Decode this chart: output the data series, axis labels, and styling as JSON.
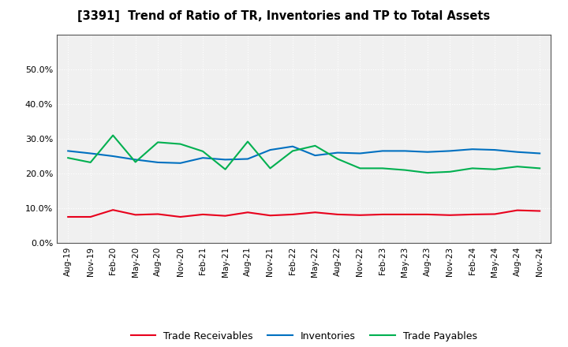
{
  "title": "[3391]  Trend of Ratio of TR, Inventories and TP to Total Assets",
  "x_labels": [
    "Aug-19",
    "Nov-19",
    "Feb-20",
    "May-20",
    "Aug-20",
    "Nov-20",
    "Feb-21",
    "May-21",
    "Aug-21",
    "Nov-21",
    "Feb-22",
    "May-22",
    "Aug-22",
    "Nov-22",
    "Feb-23",
    "May-23",
    "Aug-23",
    "Nov-23",
    "Feb-24",
    "May-24",
    "Aug-24",
    "Nov-24"
  ],
  "trade_receivables": [
    0.075,
    0.075,
    0.095,
    0.081,
    0.083,
    0.075,
    0.082,
    0.078,
    0.088,
    0.079,
    0.082,
    0.088,
    0.082,
    0.08,
    0.082,
    0.082,
    0.082,
    0.08,
    0.082,
    0.083,
    0.094,
    0.092
  ],
  "inventories": [
    0.265,
    0.258,
    0.25,
    0.24,
    0.232,
    0.23,
    0.245,
    0.24,
    0.242,
    0.268,
    0.278,
    0.252,
    0.26,
    0.258,
    0.265,
    0.265,
    0.262,
    0.265,
    0.27,
    0.268,
    0.262,
    0.258
  ],
  "trade_payables": [
    0.245,
    0.232,
    0.31,
    0.233,
    0.29,
    0.285,
    0.264,
    0.212,
    0.292,
    0.215,
    0.265,
    0.28,
    0.242,
    0.215,
    0.215,
    0.21,
    0.202,
    0.205,
    0.215,
    0.212,
    0.22,
    0.215
  ],
  "tr_color": "#e8001c",
  "inv_color": "#0070c0",
  "tp_color": "#00b050",
  "bg_color": "#ffffff",
  "plot_bg_color": "#f0f0f0",
  "grid_color": "#ffffff",
  "ylim": [
    0.0,
    0.6
  ],
  "yticks": [
    0.0,
    0.1,
    0.2,
    0.3,
    0.4,
    0.5
  ],
  "legend_labels": [
    "Trade Receivables",
    "Inventories",
    "Trade Payables"
  ]
}
